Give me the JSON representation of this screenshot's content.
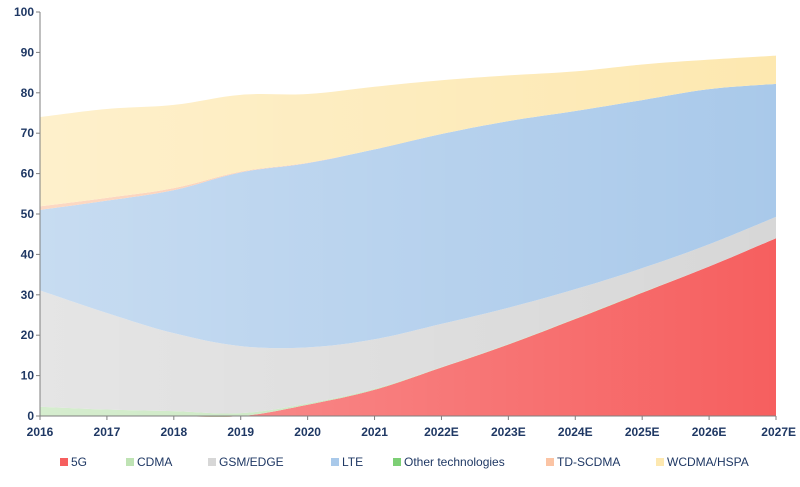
{
  "chart_data": {
    "type": "area",
    "stacked": true,
    "title": "",
    "xlabel": "",
    "ylabel": "",
    "ylim": [
      0,
      100
    ],
    "yticks": [
      0,
      10,
      20,
      30,
      40,
      50,
      60,
      70,
      80,
      90,
      100
    ],
    "grid": false,
    "legend_position": "bottom",
    "categories": [
      "2016",
      "2017",
      "2018",
      "2019",
      "2020",
      "2021",
      "2022E",
      "2023E",
      "2024E",
      "2025E",
      "2026E",
      "2027E"
    ],
    "series": [
      {
        "name": "5G",
        "color": "#f65f5f",
        "values": [
          0,
          0,
          0,
          0,
          2.8,
          6.5,
          12,
          17.7,
          24,
          30.5,
          37,
          44
        ]
      },
      {
        "name": "CDMA",
        "color": "#bfe3b4",
        "values": [
          2.3,
          1.6,
          1.2,
          0.7,
          0.3,
          0.2,
          0.1,
          0.1,
          0.1,
          0.1,
          0,
          0
        ]
      },
      {
        "name": "GSM/EDGE",
        "color": "#d7d7d7",
        "values": [
          28.8,
          23.9,
          19.3,
          16.6,
          13.9,
          12.3,
          10.7,
          9,
          7.3,
          6,
          5.5,
          5.3
        ]
      },
      {
        "name": "LTE",
        "color": "#a9c9ea",
        "values": [
          19.9,
          27.8,
          35.4,
          43,
          45.6,
          47,
          47,
          46.2,
          44.1,
          41.6,
          38.4,
          32.9
        ]
      },
      {
        "name": "Other technologies",
        "color": "#7dcf75",
        "values": [
          0,
          0,
          0,
          0,
          0,
          0,
          0,
          0,
          0,
          0,
          0,
          0
        ]
      },
      {
        "name": "TD-SCDMA",
        "color": "#fbc4a4",
        "values": [
          0.9,
          0.7,
          0.5,
          0.2,
          0.1,
          0,
          0,
          0,
          0,
          0,
          0,
          0
        ]
      },
      {
        "name": "WCDMA/HSPA",
        "color": "#fde8b0",
        "values": [
          22.1,
          22,
          20.6,
          19,
          17,
          15.5,
          13.3,
          11.3,
          9.8,
          8.8,
          7.3,
          7
        ]
      }
    ]
  }
}
